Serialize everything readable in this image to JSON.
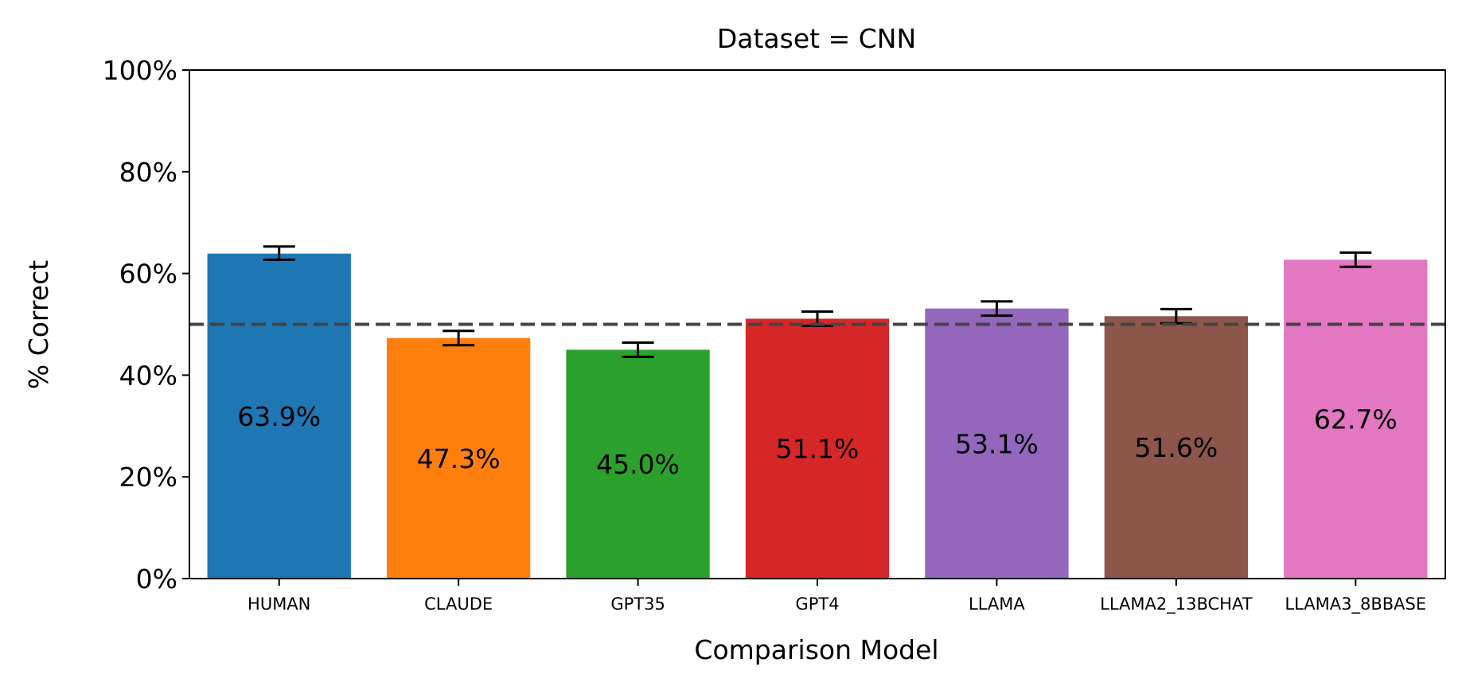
{
  "chart_data": {
    "type": "bar",
    "title": "Dataset = CNN",
    "xlabel": "Comparison Model",
    "ylabel": "% Correct",
    "ylim": [
      0,
      100
    ],
    "yticks": [
      0,
      20,
      40,
      60,
      80,
      100
    ],
    "ytick_labels": [
      "0%",
      "20%",
      "40%",
      "60%",
      "80%",
      "100%"
    ],
    "reference_line": 50,
    "categories": [
      "HUMAN",
      "CLAUDE",
      "GPT35",
      "GPT4",
      "LLAMA",
      "LLAMA2_13BCHAT",
      "LLAMA3_8BBASE"
    ],
    "values": [
      63.9,
      47.3,
      45.0,
      51.1,
      53.1,
      51.6,
      62.7
    ],
    "value_labels": [
      "63.9%",
      "47.3%",
      "45.0%",
      "51.1%",
      "53.1%",
      "51.6%",
      "62.7%"
    ],
    "error_bars": [
      [
        62.7,
        65.3
      ],
      [
        45.9,
        48.7
      ],
      [
        43.6,
        46.4
      ],
      [
        49.7,
        52.5
      ],
      [
        51.7,
        54.5
      ],
      [
        50.2,
        53.0
      ],
      [
        61.3,
        64.1
      ]
    ],
    "colors": [
      "#1f77b4",
      "#ff7f0e",
      "#2ca02c",
      "#d62728",
      "#9467bd",
      "#8c564b",
      "#e377c2"
    ],
    "grid": false,
    "legend": "none"
  }
}
